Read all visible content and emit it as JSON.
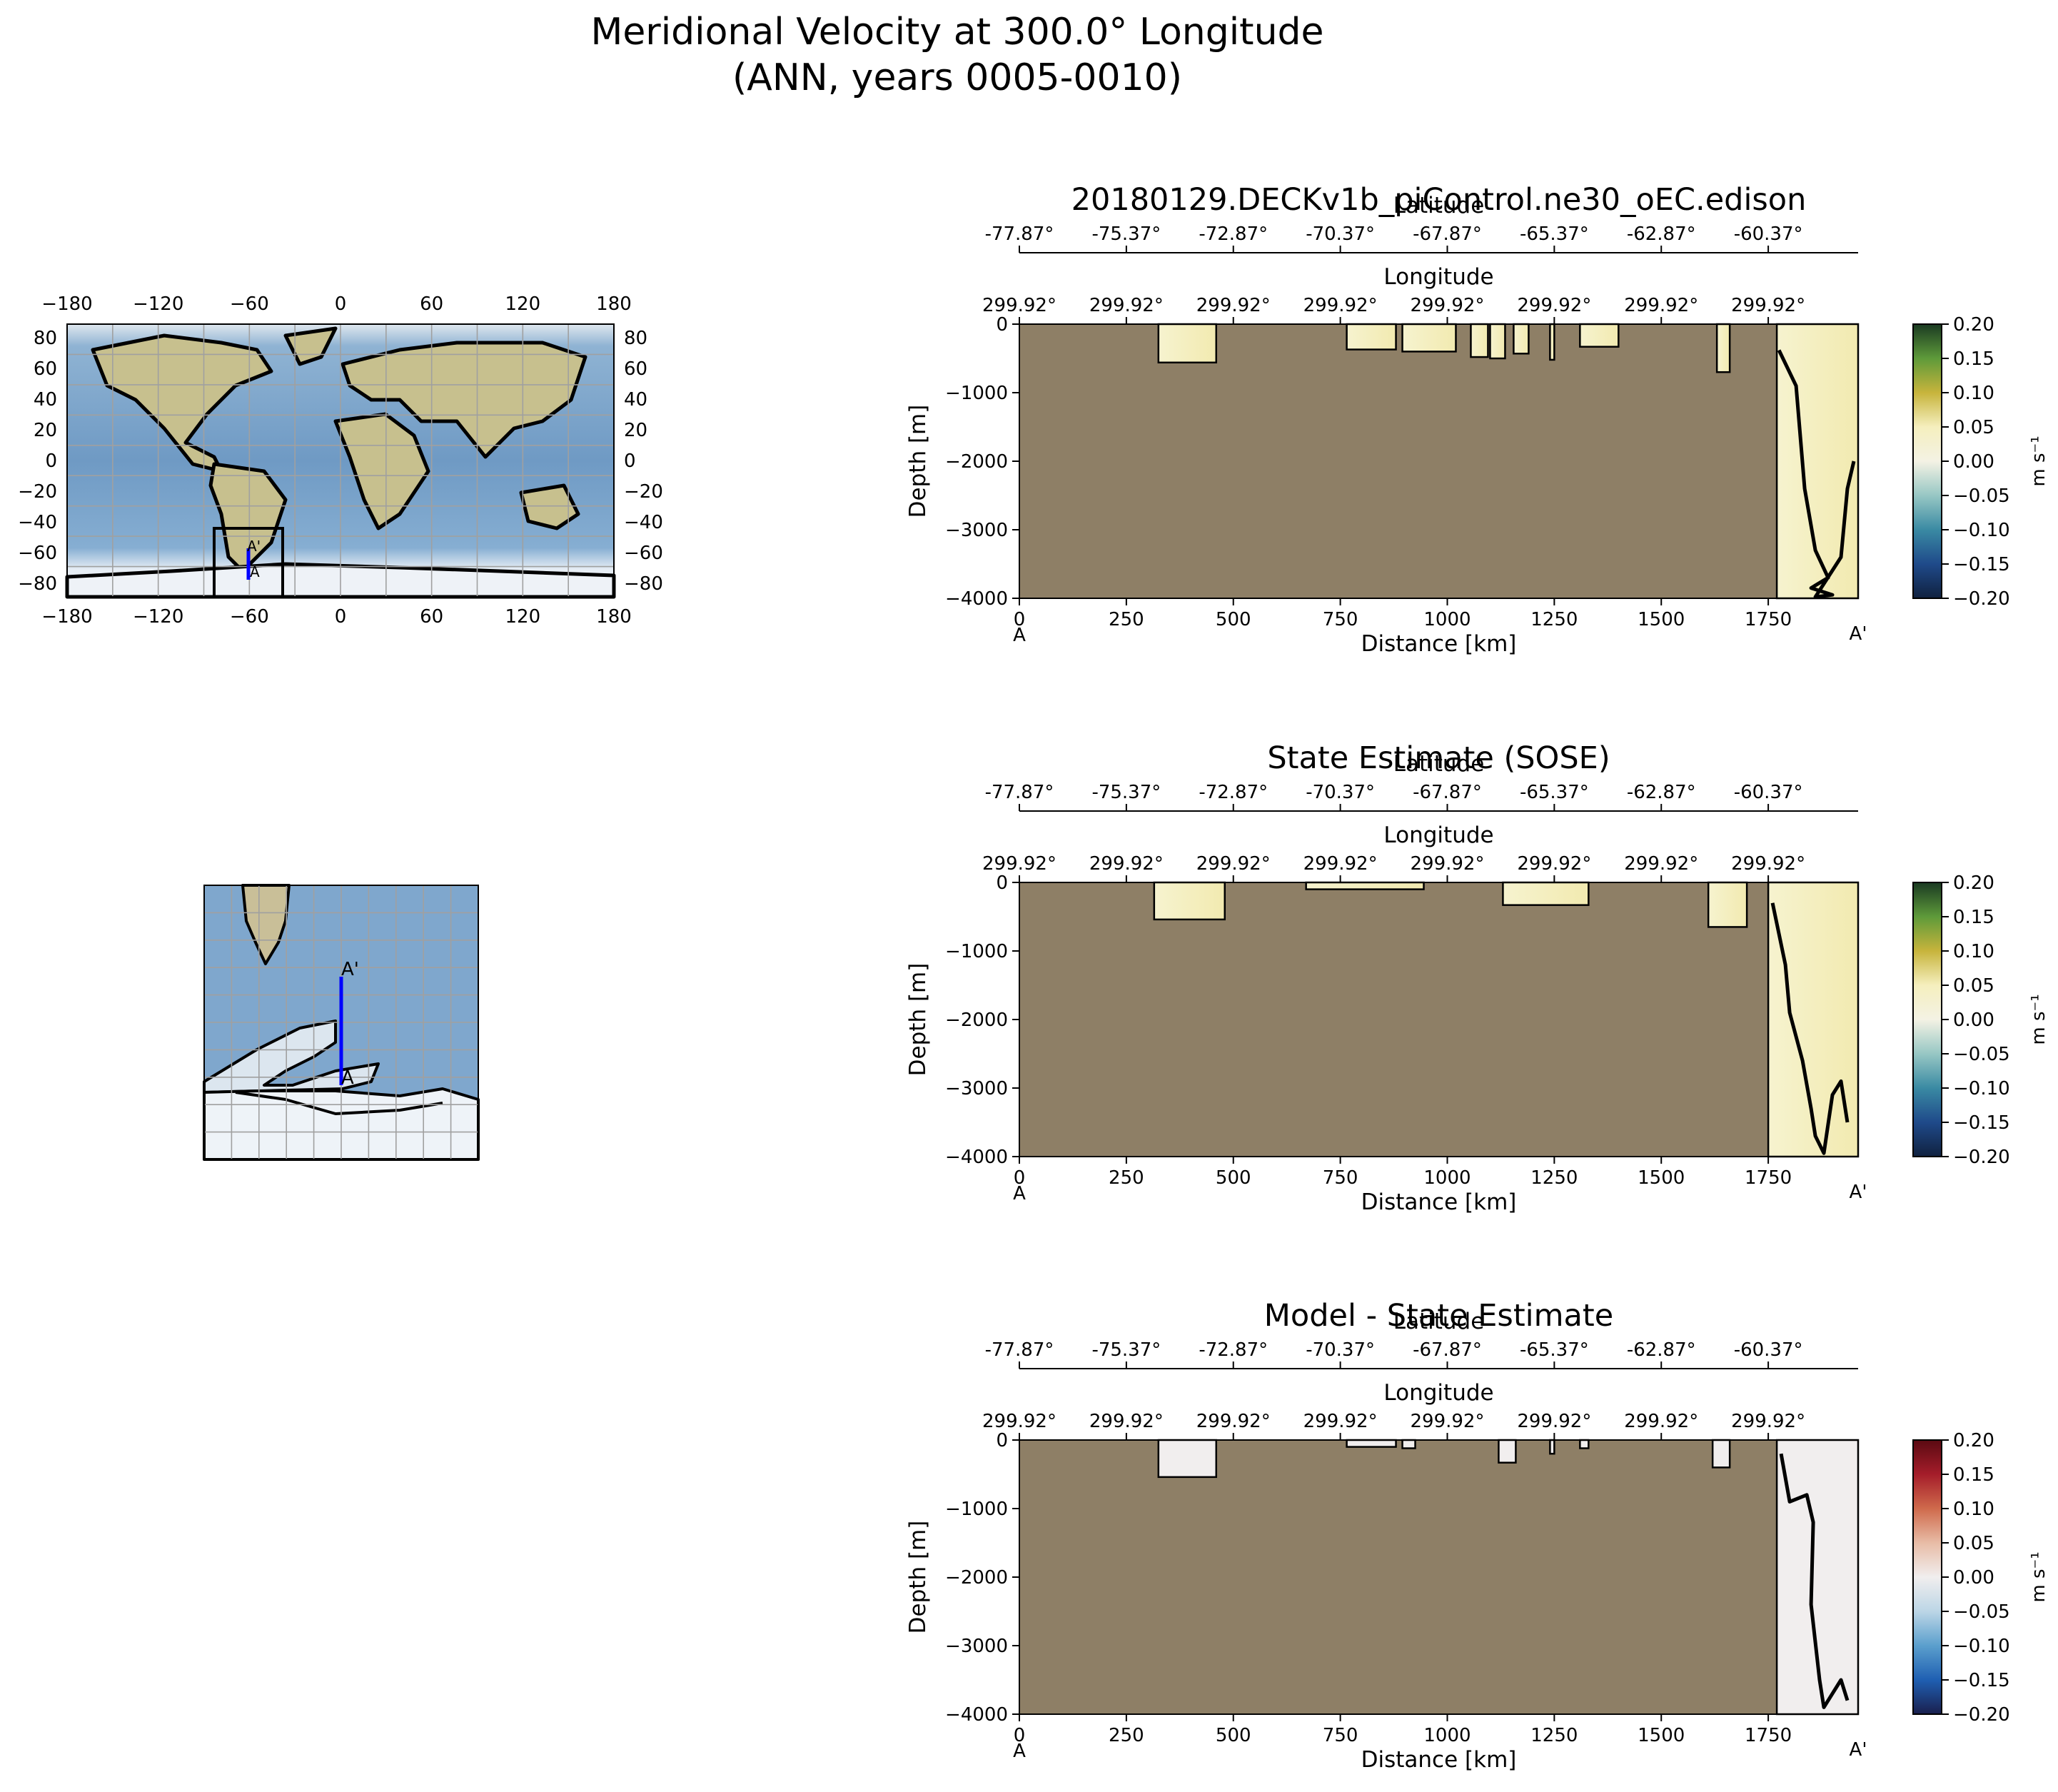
{
  "figure": {
    "suptitle_line1": "Meridional Velocity at 300.0° Longitude",
    "suptitle_line2": "(ANN, years 0005-0010)"
  },
  "colors": {
    "land": "#8e7f66",
    "ocean": "#7ea6cc",
    "transect": "#0000ff",
    "grid": "#a0a0a0",
    "velocity_cmap": [
      "#10213f",
      "#1f4a8a",
      "#3a8aa3",
      "#97c7c4",
      "#f4f2e4",
      "#f5efbe",
      "#c7b43c",
      "#5e9a3a",
      "#1a3a22"
    ],
    "difference_cmap": [
      "#1a1f4d",
      "#1f5fb2",
      "#5b9fcd",
      "#bcd6e6",
      "#f1eeee",
      "#e8bca6",
      "#cf6a4c",
      "#a51d2a",
      "#5a0a12"
    ]
  },
  "maps": {
    "global": {
      "x_ticks": [
        "−180",
        "−120",
        "−60",
        "0",
        "60",
        "120",
        "180"
      ],
      "y_ticks": [
        "80",
        "60",
        "40",
        "20",
        "0",
        "−20",
        "−40",
        "−60",
        "−80"
      ],
      "marker_start": "A",
      "marker_end": "A'"
    },
    "inset": {
      "marker_start": "A",
      "marker_end": "A'"
    }
  },
  "chart_data": [
    {
      "type": "heatmap",
      "title": "20180129.DECKv1b_piControl.ne30_oEC.edison",
      "xlabel": "Distance [km]",
      "ylabel": "Depth [m]",
      "top_axis1_label": "Longitude",
      "top_axis2_label": "Latitude",
      "x_ticks": [
        0,
        250,
        500,
        750,
        1000,
        1250,
        1500,
        1750
      ],
      "y_ticks": [
        0,
        -1000,
        -2000,
        -3000,
        -4000
      ],
      "xlim": [
        0,
        1960
      ],
      "ylim": [
        -4000,
        0
      ],
      "longitude_ticks": [
        "299.92°",
        "299.92°",
        "299.92°",
        "299.92°",
        "299.92°",
        "299.92°",
        "299.92°",
        "299.92°"
      ],
      "latitude_ticks": [
        "-77.87°",
        "-75.37°",
        "-72.87°",
        "-70.37°",
        "-67.87°",
        "-65.37°",
        "-62.87°",
        "-60.37°"
      ],
      "start_label": "A",
      "end_label": "A'",
      "colorbar": {
        "label": "m s⁻¹",
        "ticks": [
          "0.20",
          "0.15",
          "0.10",
          "0.05",
          "0.00",
          "−0.05",
          "−0.10",
          "−0.15",
          "−0.20"
        ],
        "vmin": -0.2,
        "vmax": 0.2,
        "cmap": "velocity"
      },
      "open_water_segments": [
        [
          325,
          460,
          -560
        ],
        [
          765,
          880,
          -370
        ],
        [
          895,
          1020,
          -400
        ],
        [
          1055,
          1095,
          -480
        ],
        [
          1100,
          1135,
          -500
        ],
        [
          1155,
          1190,
          -430
        ],
        [
          1240,
          1250,
          -520
        ],
        [
          1310,
          1400,
          -330
        ],
        [
          1630,
          1660,
          -700
        ],
        [
          1770,
          1960,
          -4000
        ]
      ],
      "zero_contour": [
        [
          1775,
          -380
        ],
        [
          1815,
          -900
        ],
        [
          1835,
          -2400
        ],
        [
          1860,
          -3300
        ],
        [
          1890,
          -3700
        ],
        [
          1850,
          -3850
        ],
        [
          1900,
          -3950
        ],
        [
          1860,
          -3980
        ],
        [
          1920,
          -3400
        ],
        [
          1935,
          -2400
        ],
        [
          1950,
          -2000
        ]
      ]
    },
    {
      "type": "heatmap",
      "title": "State Estimate (SOSE)",
      "xlabel": "Distance [km]",
      "ylabel": "Depth [m]",
      "top_axis1_label": "Longitude",
      "top_axis2_label": "Latitude",
      "x_ticks": [
        0,
        250,
        500,
        750,
        1000,
        1250,
        1500,
        1750
      ],
      "y_ticks": [
        0,
        -1000,
        -2000,
        -3000,
        -4000
      ],
      "xlim": [
        0,
        1960
      ],
      "ylim": [
        -4000,
        0
      ],
      "longitude_ticks": [
        "299.92°",
        "299.92°",
        "299.92°",
        "299.92°",
        "299.92°",
        "299.92°",
        "299.92°",
        "299.92°"
      ],
      "latitude_ticks": [
        "-77.87°",
        "-75.37°",
        "-72.87°",
        "-70.37°",
        "-67.87°",
        "-65.37°",
        "-62.87°",
        "-60.37°"
      ],
      "start_label": "A",
      "end_label": "A'",
      "colorbar": {
        "label": "m s⁻¹",
        "ticks": [
          "0.20",
          "0.15",
          "0.10",
          "0.05",
          "0.00",
          "−0.05",
          "−0.10",
          "−0.15",
          "−0.20"
        ],
        "vmin": -0.2,
        "vmax": 0.2,
        "cmap": "velocity"
      },
      "open_water_segments": [
        [
          315,
          480,
          -540
        ],
        [
          670,
          945,
          -100
        ],
        [
          1130,
          1330,
          -330
        ],
        [
          1610,
          1700,
          -650
        ],
        [
          1750,
          1960,
          -4000
        ]
      ],
      "zero_contour": [
        [
          1760,
          -300
        ],
        [
          1790,
          -1200
        ],
        [
          1800,
          -1900
        ],
        [
          1830,
          -2600
        ],
        [
          1850,
          -3300
        ],
        [
          1860,
          -3700
        ],
        [
          1880,
          -3950
        ],
        [
          1900,
          -3100
        ],
        [
          1920,
          -2900
        ],
        [
          1935,
          -3500
        ]
      ]
    },
    {
      "type": "heatmap",
      "title": "Model - State Estimate",
      "xlabel": "Distance [km]",
      "ylabel": "Depth [m]",
      "top_axis1_label": "Longitude",
      "top_axis2_label": "Latitude",
      "x_ticks": [
        0,
        250,
        500,
        750,
        1000,
        1250,
        1500,
        1750
      ],
      "y_ticks": [
        0,
        -1000,
        -2000,
        -3000,
        -4000
      ],
      "xlim": [
        0,
        1960
      ],
      "ylim": [
        -4000,
        0
      ],
      "longitude_ticks": [
        "299.92°",
        "299.92°",
        "299.92°",
        "299.92°",
        "299.92°",
        "299.92°",
        "299.92°",
        "299.92°"
      ],
      "latitude_ticks": [
        "-77.87°",
        "-75.37°",
        "-72.87°",
        "-70.37°",
        "-67.87°",
        "-65.37°",
        "-62.87°",
        "-60.37°"
      ],
      "start_label": "A",
      "end_label": "A'",
      "colorbar": {
        "label": "m s⁻¹",
        "ticks": [
          "0.20",
          "0.15",
          "0.10",
          "0.05",
          "0.00",
          "−0.05",
          "−0.10",
          "−0.15",
          "−0.20"
        ],
        "vmin": -0.2,
        "vmax": 0.2,
        "cmap": "difference"
      },
      "open_water_segments": [
        [
          325,
          460,
          -540
        ],
        [
          765,
          880,
          -100
        ],
        [
          895,
          925,
          -120
        ],
        [
          1120,
          1160,
          -330
        ],
        [
          1240,
          1250,
          -200
        ],
        [
          1310,
          1330,
          -120
        ],
        [
          1620,
          1660,
          -400
        ],
        [
          1770,
          1960,
          -4000
        ]
      ],
      "zero_contour": [
        [
          1780,
          -200
        ],
        [
          1800,
          -900
        ],
        [
          1840,
          -800
        ],
        [
          1855,
          -1200
        ],
        [
          1850,
          -2400
        ],
        [
          1870,
          -3500
        ],
        [
          1880,
          -3900
        ],
        [
          1900,
          -3700
        ],
        [
          1920,
          -3500
        ],
        [
          1935,
          -3800
        ]
      ]
    }
  ]
}
